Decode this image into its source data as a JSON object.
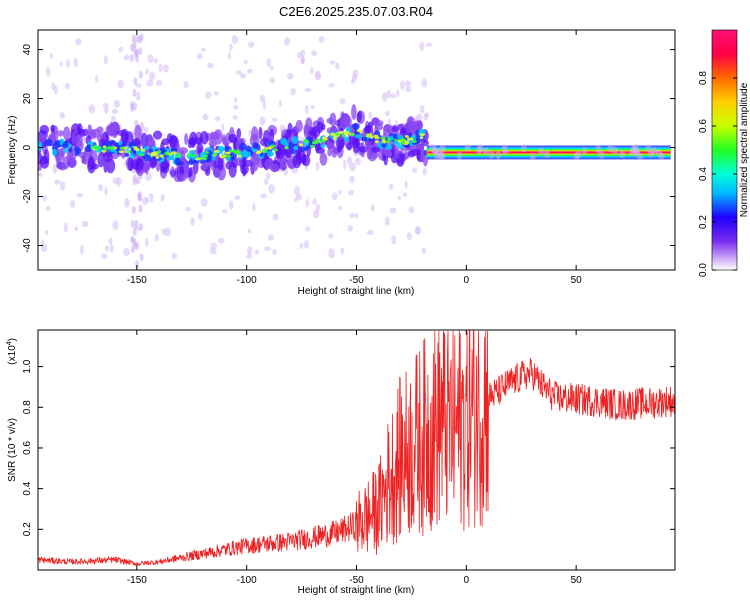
{
  "title": "C2E6.2025.235.07.03.R04",
  "colors": {
    "background": "#ffffff",
    "snr_line": "#ee2222",
    "frame": "#000000"
  },
  "chart_data": [
    {
      "type": "heatmap",
      "xlabel": "Height of straight line (km)",
      "ylabel": "Frequency (Hz)",
      "xlim": [
        -195,
        95
      ],
      "ylim": [
        -50,
        48
      ],
      "xticks": [
        -150,
        -100,
        -50,
        0,
        50
      ],
      "yticks": [
        -40,
        -20,
        0,
        20,
        40
      ],
      "colorbar": {
        "label": "Normalized spectral amplitude",
        "range": [
          0,
          1
        ],
        "ticks": [
          0.0,
          0.2,
          0.4,
          0.6,
          0.8
        ],
        "colormap": [
          "#ffffff",
          "#c9a6f5",
          "#7a2cf0",
          "#1f00ff",
          "#00b8ff",
          "#00ffd8",
          "#22ff22",
          "#c8ff00",
          "#ffd000",
          "#ff6a00",
          "#ff0044",
          "#ff1077"
        ]
      },
      "ridge": {
        "description_points_x": [
          -195,
          -160,
          -130,
          -100,
          -70,
          -50,
          -45,
          -35,
          -20,
          -18,
          0,
          50,
          92
        ],
        "description_points_y": [
          0,
          0,
          -4,
          -2,
          2,
          7,
          5,
          2,
          4,
          -2,
          -2,
          -2,
          -2
        ]
      },
      "grid": false
    },
    {
      "type": "line",
      "xlabel": "Height of straight line (km)",
      "ylabel": "SNR (10 * v/v)",
      "y_multiplier": "(x10",
      "y_multiplier_exp": "4",
      "y_multiplier_close": ")",
      "xlim": [
        -195,
        95
      ],
      "ylim": [
        0,
        1.18
      ],
      "xticks": [
        -150,
        -100,
        -50,
        0,
        50
      ],
      "yticks": [
        0.2,
        0.4,
        0.6,
        0.8,
        1.0
      ],
      "series": [
        {
          "color": "#ee2222",
          "x": [
            -195,
            -180,
            -160,
            -150,
            -140,
            -130,
            -120,
            -110,
            -100,
            -90,
            -80,
            -70,
            -60,
            -50,
            -45,
            -40,
            -35,
            -30,
            -25,
            -20,
            -15,
            -12,
            -10,
            -5,
            0,
            5,
            10,
            15,
            20,
            25,
            30,
            35,
            40,
            50,
            60,
            70,
            80,
            85,
            90,
            95
          ],
          "y": [
            0.05,
            0.04,
            0.05,
            0.03,
            0.04,
            0.06,
            0.08,
            0.1,
            0.12,
            0.13,
            0.14,
            0.16,
            0.18,
            0.22,
            0.26,
            0.3,
            0.45,
            0.55,
            0.6,
            0.65,
            0.7,
            0.75,
            0.72,
            0.7,
            0.75,
            0.8,
            0.85,
            0.88,
            0.92,
            0.95,
            0.97,
            0.9,
            0.85,
            0.84,
            0.83,
            0.81,
            0.82,
            0.82,
            0.83,
            0.83
          ]
        }
      ],
      "grid": false
    }
  ]
}
